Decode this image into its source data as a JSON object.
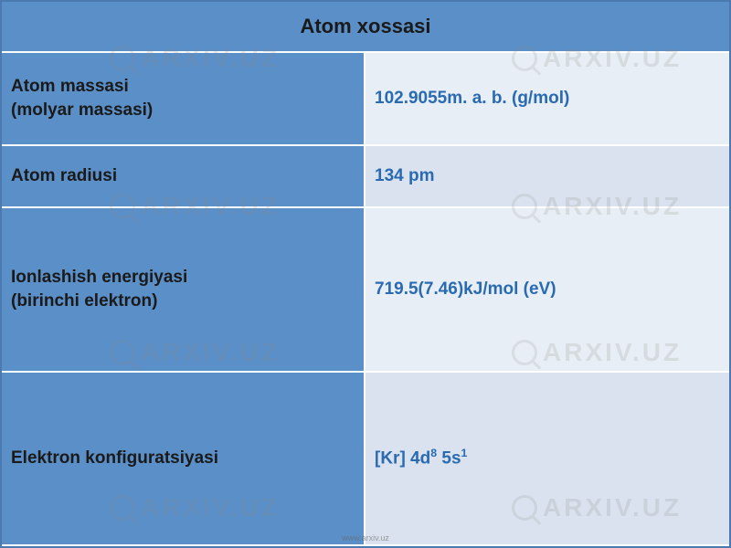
{
  "table": {
    "header": "Atom xossasi",
    "header_bg": "#5b8fc7",
    "header_color": "#1a1a1a",
    "header_fontsize": 22,
    "label_bg": "#5b8fc7",
    "label_color": "#1a1a1a",
    "label_fontsize": 19,
    "value_color": "#2a6ab0",
    "value_fontsize": 19,
    "value_bg_even": "#e8eef5",
    "value_bg_odd": "#d9e2ee",
    "border_color": "#ffffff",
    "outer_border_color": "#4a7ab0",
    "rows": [
      {
        "label_line1": "Atom massasi",
        "label_line2": "(molyar massasi)",
        "value": "102.9055m. a. b. (g/mol)"
      },
      {
        "label_line1": "Atom radiusi",
        "label_line2": "",
        "value": "134 pm"
      },
      {
        "label_line1": "Ionlashish energiyasi",
        "label_line2": "(birinchi elektron)",
        "value": "719.5(7.46)kJ/mol (eV)"
      },
      {
        "label_line1": "Elektron konfiguratsiyasi",
        "label_line2": "",
        "value_prefix": "[Kr] 4d",
        "value_sup1": "8",
        "value_mid": " 5s",
        "value_sup2": "1"
      }
    ]
  },
  "watermark": {
    "text": "ARXIV.UZ",
    "color": "#888888",
    "opacity": 0.18,
    "fontsize": 28
  },
  "footer": {
    "url": "www.arxiv.uz"
  }
}
